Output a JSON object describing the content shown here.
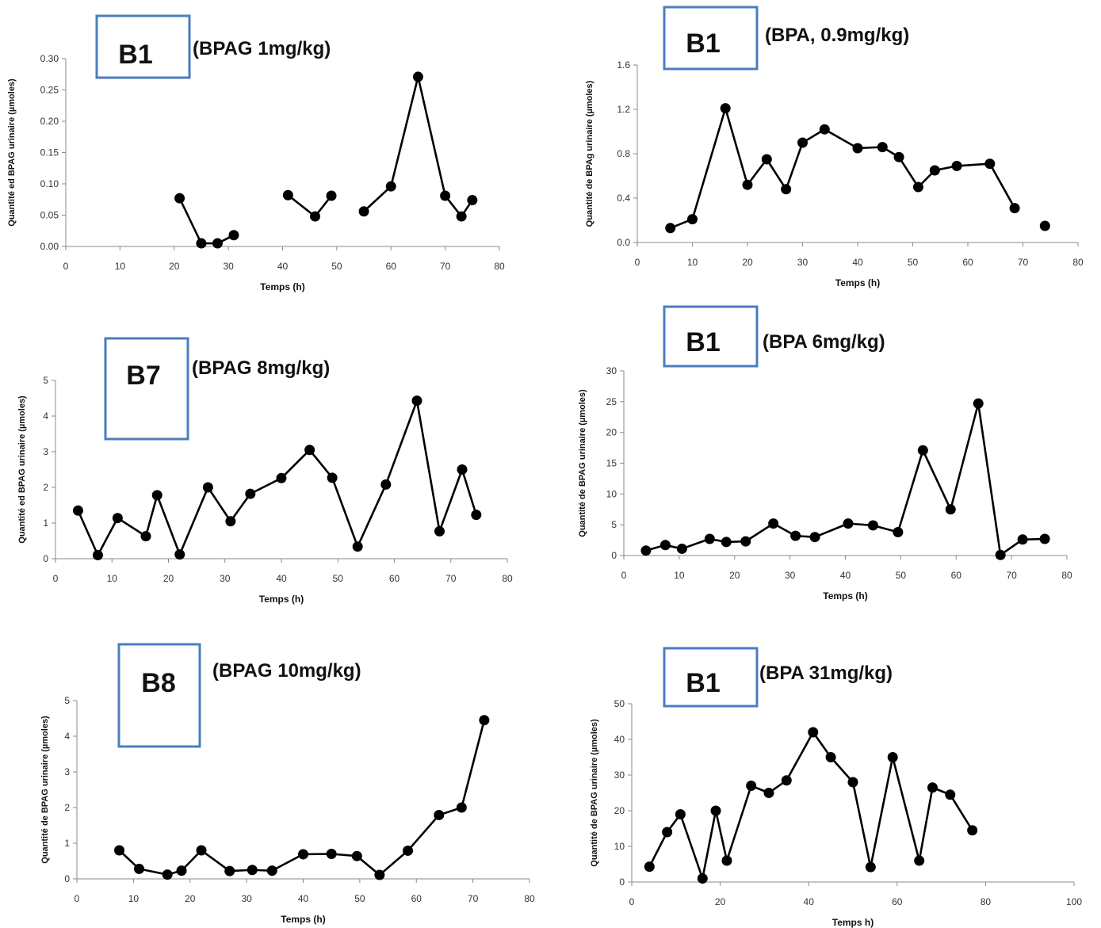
{
  "chart_data": [
    {
      "type": "line",
      "box_label": "B1",
      "title": "(BPAG 1mg/kg)",
      "xlabel": "Temps (h)",
      "ylabel": "Quantité ed BPAG urinaire (µmoles)",
      "xlim": [
        0,
        80
      ],
      "ylim": [
        0,
        0.3
      ],
      "xticks": [
        "0",
        "10",
        "20",
        "30",
        "40",
        "50",
        "60",
        "70",
        "80"
      ],
      "yticks": [
        "0.00",
        "0.05",
        "0.10",
        "0.15",
        "0.20",
        "0.25",
        "0.30"
      ],
      "series": [
        {
          "segments": [
            [
              [
                21,
                0.077
              ],
              [
                25,
                0.005
              ],
              [
                28,
                0.005
              ],
              [
                31,
                0.018
              ]
            ],
            [
              [
                41,
                0.082
              ],
              [
                46,
                0.048
              ],
              [
                49,
                0.081
              ]
            ],
            [
              [
                55,
                0.056
              ],
              [
                60,
                0.096
              ],
              [
                65,
                0.271
              ],
              [
                70,
                0.081
              ],
              [
                73,
                0.048
              ],
              [
                75,
                0.074
              ]
            ]
          ]
        }
      ]
    },
    {
      "type": "line",
      "box_label": "B1",
      "title": "(BPA, 0.9mg/kg)",
      "xlabel": "Temps (h)",
      "ylabel": "Quantité de BPAg urinaire (µmoles)",
      "xlim": [
        0,
        80
      ],
      "ylim": [
        0,
        1.6
      ],
      "xticks": [
        "0",
        "10",
        "20",
        "30",
        "40",
        "50",
        "60",
        "70",
        "80"
      ],
      "yticks": [
        "0.0",
        "0.4",
        "0.8",
        "1.2",
        "1.6"
      ],
      "series": [
        {
          "segments": [
            [
              [
                6,
                0.13
              ],
              [
                10,
                0.21
              ],
              [
                16,
                1.21
              ],
              [
                20,
                0.52
              ],
              [
                23.5,
                0.75
              ],
              [
                27,
                0.48
              ],
              [
                30,
                0.9
              ],
              [
                34,
                1.02
              ],
              [
                40,
                0.85
              ],
              [
                44.5,
                0.86
              ],
              [
                47.5,
                0.77
              ],
              [
                51,
                0.5
              ],
              [
                54,
                0.65
              ],
              [
                58,
                0.69
              ],
              [
                64,
                0.71
              ],
              [
                68.5,
                0.31
              ]
            ],
            [
              [
                74,
                0.15
              ]
            ]
          ]
        }
      ]
    },
    {
      "type": "line",
      "box_label": "B7",
      "title": "(BPAG 8mg/kg)",
      "xlabel": "Temps (h)",
      "ylabel": "Quantité ed BPAG urinaire (µmoles)",
      "xlim": [
        0,
        80
      ],
      "ylim": [
        0,
        5
      ],
      "xticks": [
        "0",
        "10",
        "20",
        "30",
        "40",
        "50",
        "60",
        "70",
        "80"
      ],
      "yticks": [
        "0",
        "1",
        "2",
        "3",
        "4",
        "5"
      ],
      "series": [
        {
          "segments": [
            [
              [
                4,
                1.35
              ],
              [
                7.5,
                0.1
              ],
              [
                11,
                1.14
              ],
              [
                16,
                0.63
              ],
              [
                18,
                1.78
              ],
              [
                22,
                0.12
              ],
              [
                27,
                2.0
              ],
              [
                31,
                1.05
              ],
              [
                34.5,
                1.82
              ],
              [
                40,
                2.26
              ],
              [
                45,
                3.05
              ],
              [
                49,
                2.27
              ],
              [
                53.5,
                0.34
              ],
              [
                58.5,
                2.08
              ],
              [
                64,
                4.43
              ],
              [
                68,
                0.77
              ],
              [
                72,
                2.5
              ],
              [
                74.5,
                1.23
              ]
            ]
          ]
        }
      ]
    },
    {
      "type": "line",
      "box_label": "B1",
      "title": "(BPA 6mg/kg)",
      "xlabel": "Temps (h)",
      "ylabel": "Quantité de BPAG urinaire (µmoles)",
      "xlim": [
        0,
        80
      ],
      "ylim": [
        0,
        30
      ],
      "xticks": [
        "0",
        "10",
        "20",
        "30",
        "40",
        "50",
        "60",
        "70",
        "80"
      ],
      "yticks": [
        "0",
        "5",
        "10",
        "15",
        "20",
        "25",
        "30"
      ],
      "series": [
        {
          "segments": [
            [
              [
                4,
                0.8
              ],
              [
                7.5,
                1.7
              ],
              [
                10.5,
                1.1
              ],
              [
                15.5,
                2.7
              ],
              [
                18.5,
                2.2
              ],
              [
                22,
                2.3
              ],
              [
                27,
                5.2
              ],
              [
                31,
                3.2
              ],
              [
                34.5,
                3.0
              ],
              [
                40.5,
                5.2
              ],
              [
                45,
                4.9
              ],
              [
                49.5,
                3.8
              ],
              [
                54,
                17.1
              ],
              [
                59,
                7.5
              ],
              [
                64,
                24.7
              ],
              [
                68,
                0.1
              ],
              [
                72,
                2.6
              ],
              [
                76,
                2.7
              ]
            ]
          ]
        }
      ]
    },
    {
      "type": "line",
      "box_label": "B8",
      "title": "(BPAG 10mg/kg)",
      "xlabel": "Temps (h)",
      "ylabel": "Quantité de BPAG urinaire (µmoles)",
      "xlim": [
        0,
        80
      ],
      "ylim": [
        0,
        5
      ],
      "xticks": [
        "0",
        "10",
        "20",
        "30",
        "40",
        "50",
        "60",
        "70",
        "80"
      ],
      "yticks": [
        "0",
        "1",
        "2",
        "3",
        "4",
        "5"
      ],
      "series": [
        {
          "segments": [
            [
              [
                7.5,
                0.8
              ],
              [
                11,
                0.28
              ],
              [
                16,
                0.12
              ],
              [
                18.5,
                0.23
              ],
              [
                22,
                0.8
              ],
              [
                27,
                0.22
              ],
              [
                31,
                0.25
              ],
              [
                34.5,
                0.23
              ],
              [
                40,
                0.69
              ],
              [
                45,
                0.7
              ],
              [
                49.5,
                0.64
              ],
              [
                53.5,
                0.11
              ],
              [
                58.5,
                0.79
              ],
              [
                64,
                1.79
              ],
              [
                68,
                2.0
              ],
              [
                72,
                4.45
              ]
            ]
          ]
        }
      ]
    },
    {
      "type": "line",
      "box_label": "B1",
      "title": "(BPA 31mg/kg)",
      "xlabel": "Temps h)",
      "ylabel": "Quantité de BPAG urinaire (µmoles)",
      "xlim": [
        0,
        100
      ],
      "ylim": [
        0,
        50
      ],
      "xticks": [
        "0",
        "20",
        "40",
        "60",
        "80",
        "100"
      ],
      "yticks": [
        "0",
        "10",
        "20",
        "30",
        "40",
        "50"
      ],
      "series": [
        {
          "segments": [
            [
              [
                4,
                4.3
              ],
              [
                8,
                14
              ],
              [
                11,
                19
              ],
              [
                16,
                1
              ],
              [
                19,
                20
              ],
              [
                21.5,
                6
              ],
              [
                27,
                27
              ],
              [
                31,
                25
              ],
              [
                35,
                28.5
              ],
              [
                41,
                42
              ],
              [
                45,
                35
              ],
              [
                50,
                28
              ],
              [
                54,
                4.2
              ],
              [
                59,
                35
              ],
              [
                65,
                6
              ],
              [
                68,
                26.5
              ],
              [
                72,
                24.5
              ],
              [
                77,
                14.5
              ]
            ]
          ]
        }
      ]
    }
  ]
}
